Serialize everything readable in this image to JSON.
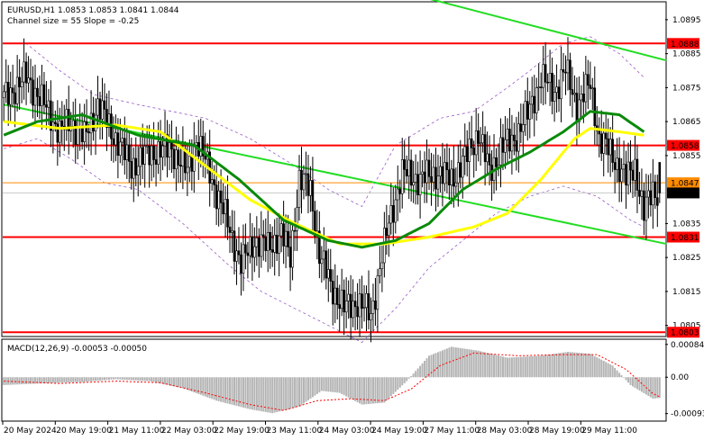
{
  "header": {
    "symbol_line": "EURUSD,H1  1.0853 1.0853 1.0841 1.0844",
    "channel_line": "Channel size = 55 Slope = -0.25"
  },
  "macd_header": "MACD(12,26,9) -0.00053 -0.00050",
  "colors": {
    "candle": "#000000",
    "red_level": "#ff0000",
    "orange_level": "#ff8c00",
    "channel": "#22dd22",
    "ma_fast": "#ffff00",
    "ma_slow": "#0a8a0a",
    "envelope": "#9a5ac8",
    "macd_hist": "#b4b4b4",
    "macd_signal": "#ff0000"
  },
  "price_axis": {
    "ticks": [
      "1.0895",
      "1.0885",
      "1.0875",
      "1.0865",
      "1.0855",
      "1.0835",
      "1.0825",
      "1.0815",
      "1.0805"
    ],
    "range": [
      1.0802,
      1.09
    ]
  },
  "levels": [
    {
      "label": "1.0888",
      "value": 1.0888,
      "kind": "red"
    },
    {
      "label": "1.0858",
      "value": 1.0858,
      "kind": "red"
    },
    {
      "label": "1.0831",
      "value": 1.0831,
      "kind": "red"
    },
    {
      "label": "1.0803",
      "value": 1.0803,
      "kind": "red"
    },
    {
      "label": "1.0847",
      "value": 1.0847,
      "kind": "orange"
    },
    {
      "label": "1.0844",
      "value": 1.0844,
      "kind": "current"
    }
  ],
  "macd_axis": {
    "ticks": [
      "0.00084",
      "0.00",
      "-0.00093"
    ],
    "range": [
      -0.0011,
      0.00095
    ]
  },
  "time_axis": {
    "labels": [
      "20 May 2024",
      "20 May 19:00",
      "21 May 11:00",
      "22 May 03:00",
      "22 May 19:00",
      "23 May 11:00",
      "24 May 03:00",
      "24 May 19:00",
      "27 May 11:00",
      "28 May 03:00",
      "28 May 19:00",
      "29 May 11:00"
    ]
  },
  "chart_data": {
    "type": "candlestick",
    "symbol": "EURUSD",
    "timeframe": "H1",
    "ohlc_last": {
      "open": 1.0853,
      "high": 1.0853,
      "low": 1.0841,
      "close": 1.0844
    },
    "close_path": [
      [
        0,
        1.0872
      ],
      [
        10,
        1.0878
      ],
      [
        18,
        1.087
      ],
      [
        25,
        1.0862
      ],
      [
        30,
        1.0865
      ],
      [
        36,
        1.086
      ],
      [
        42,
        1.087
      ],
      [
        50,
        1.086
      ],
      [
        57,
        1.0852
      ],
      [
        66,
        1.0856
      ],
      [
        75,
        1.0857
      ],
      [
        82,
        1.085
      ],
      [
        86,
        1.086
      ],
      [
        92,
        1.085
      ],
      [
        100,
        1.0835
      ],
      [
        106,
        1.0823
      ],
      [
        112,
        1.083
      ],
      [
        118,
        1.0828
      ],
      [
        124,
        1.0832
      ],
      [
        128,
        1.0825
      ],
      [
        132,
        1.0848
      ],
      [
        137,
        1.0845
      ],
      [
        141,
        1.0826
      ],
      [
        146,
        1.0817
      ],
      [
        152,
        1.081
      ],
      [
        158,
        1.0812
      ],
      [
        164,
        1.0808
      ],
      [
        168,
        1.0822
      ],
      [
        172,
        1.0835
      ],
      [
        178,
        1.085
      ],
      [
        186,
        1.0848
      ],
      [
        194,
        1.085
      ],
      [
        200,
        1.0848
      ],
      [
        207,
        1.0855
      ],
      [
        212,
        1.0862
      ],
      [
        217,
        1.085
      ],
      [
        222,
        1.0857
      ],
      [
        228,
        1.086
      ],
      [
        234,
        1.0867
      ],
      [
        240,
        1.0878
      ],
      [
        246,
        1.0874
      ],
      [
        251,
        1.088
      ],
      [
        256,
        1.087
      ],
      [
        262,
        1.0876
      ],
      [
        266,
        1.086
      ],
      [
        272,
        1.0855
      ],
      [
        278,
        1.0848
      ],
      [
        282,
        1.0852
      ],
      [
        286,
        1.0838
      ],
      [
        290,
        1.0845
      ],
      [
        293,
        1.0844
      ]
    ],
    "ma_fast_path": [
      [
        0,
        1.0865
      ],
      [
        25,
        1.0863
      ],
      [
        50,
        1.0864
      ],
      [
        70,
        1.0862
      ],
      [
        90,
        1.0852
      ],
      [
        110,
        1.0842
      ],
      [
        130,
        1.0835
      ],
      [
        150,
        1.0829
      ],
      [
        170,
        1.0829
      ],
      [
        190,
        1.0831
      ],
      [
        210,
        1.0834
      ],
      [
        225,
        1.0838
      ],
      [
        240,
        1.0848
      ],
      [
        255,
        1.086
      ],
      [
        262,
        1.0863
      ],
      [
        275,
        1.0862
      ],
      [
        286,
        1.0861
      ]
    ],
    "ma_slow_path": [
      [
        0,
        1.0861
      ],
      [
        15,
        1.0865
      ],
      [
        35,
        1.0867
      ],
      [
        60,
        1.0861
      ],
      [
        85,
        1.0858
      ],
      [
        105,
        1.0848
      ],
      [
        125,
        1.0836
      ],
      [
        145,
        1.083
      ],
      [
        160,
        1.0828
      ],
      [
        175,
        1.083
      ],
      [
        190,
        1.0835
      ],
      [
        205,
        1.0845
      ],
      [
        220,
        1.0851
      ],
      [
        235,
        1.0856
      ],
      [
        250,
        1.0862
      ],
      [
        262,
        1.0868
      ],
      [
        275,
        1.0867
      ],
      [
        286,
        1.0862
      ]
    ],
    "envelope_upper_path": [
      [
        0,
        1.0888
      ],
      [
        10,
        1.0888
      ],
      [
        25,
        1.088
      ],
      [
        40,
        1.0873
      ],
      [
        60,
        1.087
      ],
      [
        75,
        1.0868
      ],
      [
        90,
        1.0866
      ],
      [
        110,
        1.086
      ],
      [
        130,
        1.0852
      ],
      [
        145,
        1.0845
      ],
      [
        160,
        1.084
      ],
      [
        175,
        1.0858
      ],
      [
        195,
        1.0866
      ],
      [
        210,
        1.0868
      ],
      [
        225,
        1.0875
      ],
      [
        235,
        1.088
      ],
      [
        250,
        1.0888
      ],
      [
        262,
        1.089
      ],
      [
        275,
        1.0885
      ],
      [
        286,
        1.0878
      ]
    ],
    "envelope_lower_path": [
      [
        0,
        1.0857
      ],
      [
        15,
        1.086
      ],
      [
        30,
        1.0854
      ],
      [
        45,
        1.0847
      ],
      [
        60,
        1.0845
      ],
      [
        80,
        1.0835
      ],
      [
        100,
        1.0823
      ],
      [
        115,
        1.0815
      ],
      [
        130,
        1.081
      ],
      [
        145,
        1.0805
      ],
      [
        160,
        1.08
      ],
      [
        175,
        1.081
      ],
      [
        190,
        1.0822
      ],
      [
        205,
        1.083
      ],
      [
        220,
        1.0838
      ],
      [
        235,
        1.0843
      ],
      [
        250,
        1.0846
      ],
      [
        265,
        1.0843
      ],
      [
        280,
        1.0836
      ],
      [
        286,
        1.0834
      ]
    ],
    "channel_lines": [
      {
        "from": [
          0,
          1.087
        ],
        "to": [
          296,
          1.0829
        ]
      },
      {
        "from": [
          185,
          1.0902
        ],
        "to": [
          296,
          1.0883
        ]
      }
    ],
    "macd_histogram_path": [
      [
        0,
        -0.0002
      ],
      [
        20,
        -0.00015
      ],
      [
        35,
        -0.00012
      ],
      [
        50,
        -5e-05
      ],
      [
        65,
        -0.0001
      ],
      [
        80,
        -0.00028
      ],
      [
        95,
        -0.0006
      ],
      [
        110,
        -0.00082
      ],
      [
        120,
        -0.00092
      ],
      [
        132,
        -0.00075
      ],
      [
        142,
        -0.00035
      ],
      [
        150,
        -0.0004
      ],
      [
        160,
        -0.0007
      ],
      [
        170,
        -0.00065
      ],
      [
        180,
        -0.0001
      ],
      [
        190,
        0.00055
      ],
      [
        200,
        0.00078
      ],
      [
        212,
        0.00068
      ],
      [
        225,
        0.0005
      ],
      [
        240,
        0.00055
      ],
      [
        252,
        0.00065
      ],
      [
        262,
        0.0006
      ],
      [
        272,
        0.0003
      ],
      [
        280,
        -0.0002
      ],
      [
        290,
        -0.00055
      ],
      [
        293,
        -0.00053
      ]
    ],
    "macd_signal_path": [
      [
        0,
        -0.0001
      ],
      [
        25,
        -0.00016
      ],
      [
        50,
        -0.0001
      ],
      [
        70,
        -0.00014
      ],
      [
        90,
        -0.0004
      ],
      [
        110,
        -0.0007
      ],
      [
        125,
        -0.00085
      ],
      [
        140,
        -0.0006
      ],
      [
        155,
        -0.00055
      ],
      [
        170,
        -0.0006
      ],
      [
        182,
        -0.0003
      ],
      [
        195,
        0.0003
      ],
      [
        210,
        0.00062
      ],
      [
        230,
        0.00055
      ],
      [
        250,
        0.00058
      ],
      [
        265,
        0.00058
      ],
      [
        278,
        0.0002
      ],
      [
        290,
        -0.00042
      ],
      [
        293,
        -0.0005
      ]
    ]
  }
}
